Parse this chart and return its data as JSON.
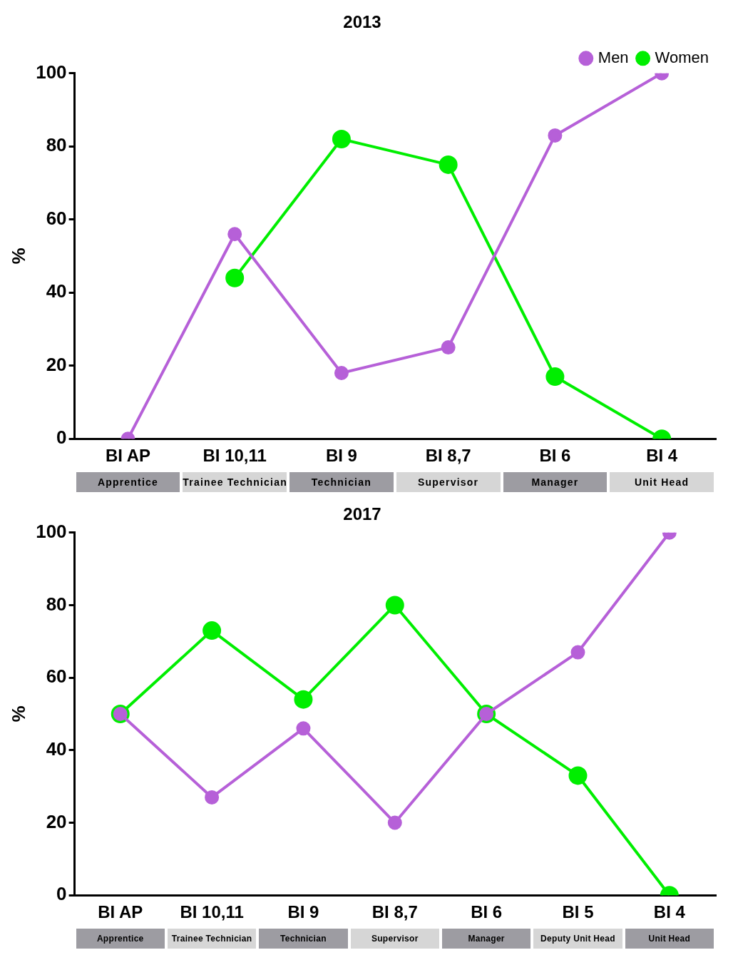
{
  "chart_data": [
    {
      "type": "line",
      "title": "2013",
      "ylabel": "%",
      "categories": [
        "BI AP",
        "BI 10,11",
        "BI 9",
        "BI 8,7",
        "BI 6",
        "BI 4"
      ],
      "series": [
        {
          "name": "Men",
          "color": "#b660d8",
          "values": [
            0,
            56,
            18,
            25,
            83,
            100
          ]
        },
        {
          "name": "Women",
          "color": "#00ee00",
          "values": [
            null,
            44,
            82,
            75,
            17,
            0
          ]
        }
      ],
      "annotations": [
        "Apprentice",
        "Trainee Technician",
        "Technician",
        "Supervisor",
        "Manager",
        "Unit Head"
      ],
      "ylim": [
        0,
        100
      ],
      "yticks": [
        0,
        20,
        40,
        60,
        80,
        100
      ],
      "grid": false,
      "legend": "top right",
      "marker": "circle",
      "line_style": "solid"
    },
    {
      "type": "line",
      "title": "2017",
      "ylabel": "%",
      "categories": [
        "BI AP",
        "BI 10,11",
        "BI 9",
        "BI 8,7",
        "BI 6",
        "BI 5",
        "BI 4"
      ],
      "series": [
        {
          "color": "#b660d8",
          "values": [
            50,
            27,
            46,
            20,
            50,
            67,
            100
          ]
        },
        {
          "color": "#00ee00",
          "values": [
            50,
            73,
            54,
            80,
            50,
            33,
            0
          ]
        }
      ],
      "annotations": [
        "Apprentice",
        "Trainee Technician",
        "Technician",
        "Supervisor",
        "Manager",
        "Deputy Unit Head",
        "Unit Head"
      ],
      "ylim": [
        0,
        100
      ],
      "yticks": [
        0,
        20,
        40,
        60,
        80,
        100
      ],
      "grid": false,
      "legend": false,
      "marker": "circle",
      "line_style": "solid"
    }
  ]
}
